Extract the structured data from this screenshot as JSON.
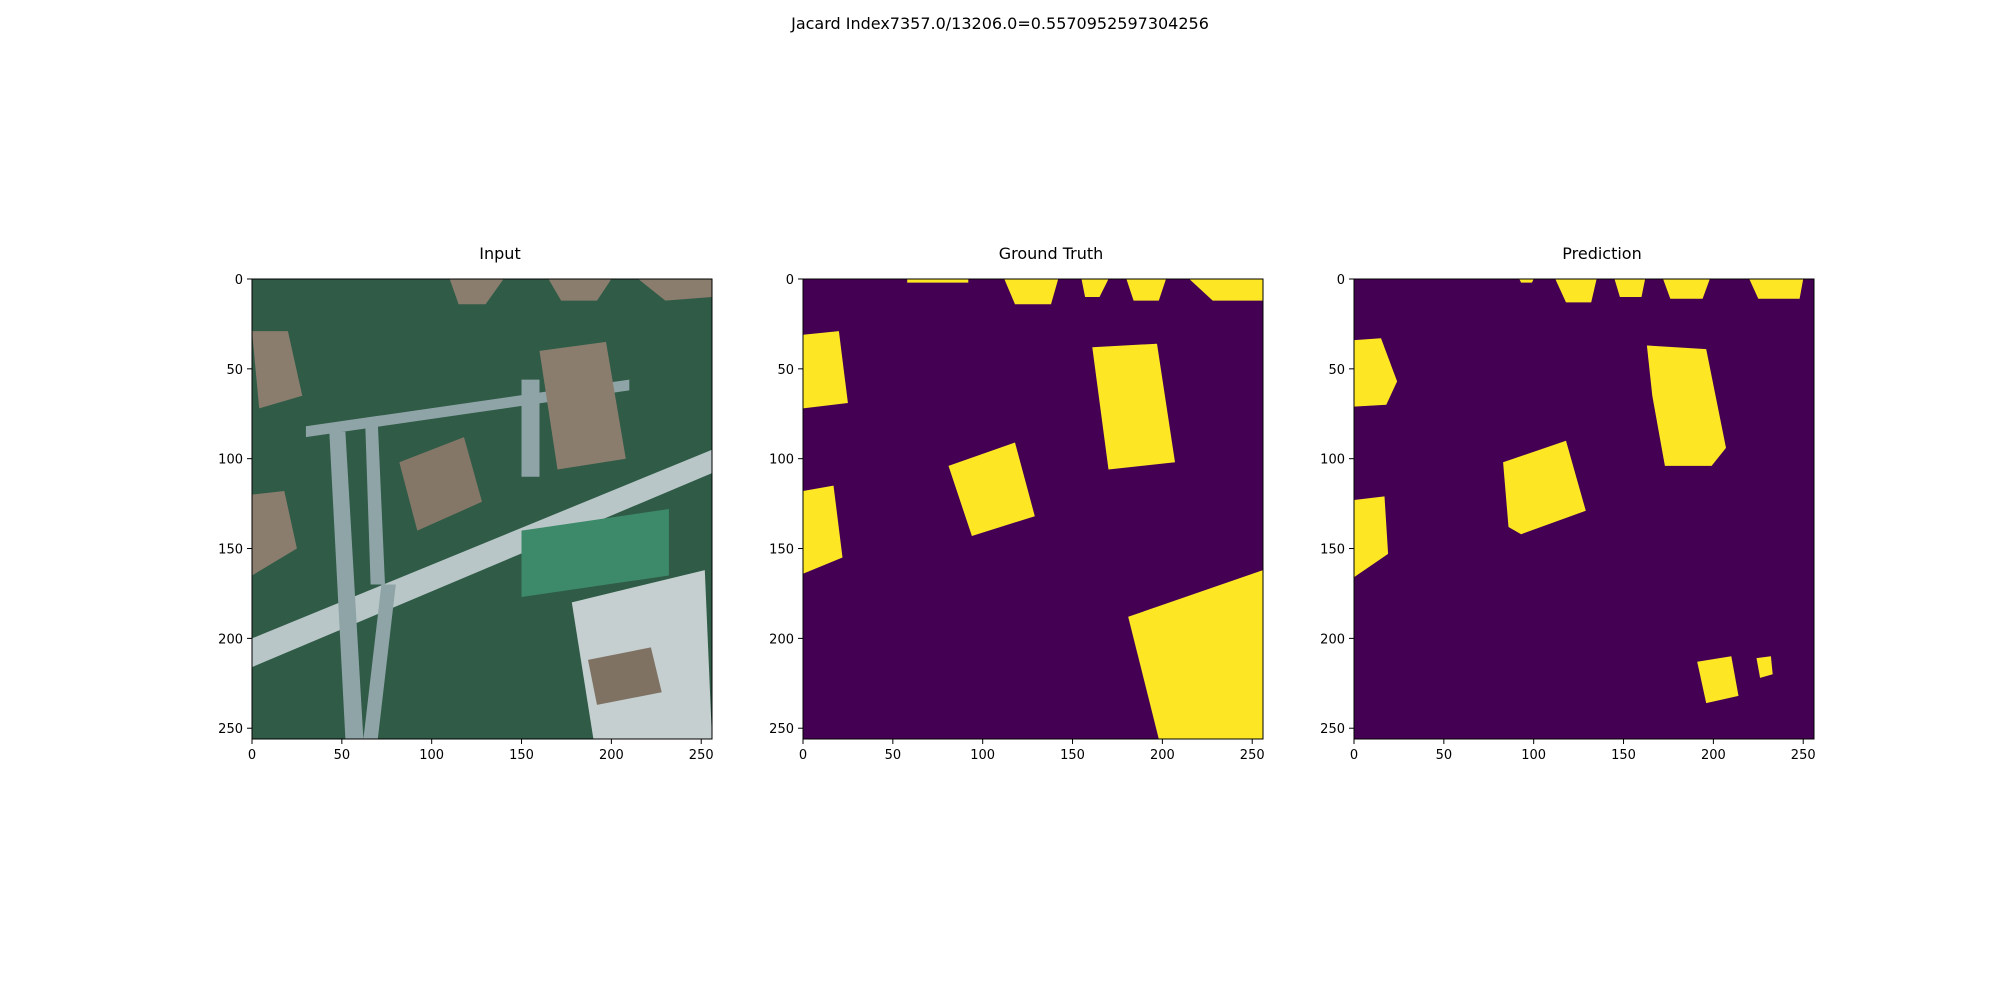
{
  "figure": {
    "suptitle": "Jacard Index7357.0/13206.0=0.5570952597304256"
  },
  "chart_data": [
    {
      "type": "heatmap",
      "title": "Input",
      "xlim": [
        0,
        256
      ],
      "ylim": [
        256,
        0
      ],
      "xticks": [
        0,
        50,
        100,
        150,
        200,
        250
      ],
      "yticks": [
        0,
        50,
        100,
        150,
        200,
        250
      ],
      "content": "aerial RGB image",
      "regions": [
        {
          "kind": "vegetation",
          "polygon": [
            [
              0,
              0
            ],
            [
              256,
              0
            ],
            [
              256,
              256
            ],
            [
              0,
              256
            ]
          ],
          "color": "#2f5b47"
        },
        {
          "kind": "road",
          "polygon": [
            [
              0,
              200
            ],
            [
              256,
              95
            ],
            [
              256,
              108
            ],
            [
              0,
              216
            ]
          ],
          "color": "#b9c6c7"
        },
        {
          "kind": "path",
          "polygon": [
            [
              43,
              85
            ],
            [
              52,
              85
            ],
            [
              62,
              256
            ],
            [
              52,
              256
            ]
          ],
          "color": "#8fa4a6"
        },
        {
          "kind": "path",
          "polygon": [
            [
              63,
              80
            ],
            [
              70,
              80
            ],
            [
              74,
              170
            ],
            [
              66,
              170
            ]
          ],
          "color": "#8fa4a6"
        },
        {
          "kind": "path",
          "polygon": [
            [
              72,
              170
            ],
            [
              80,
              170
            ],
            [
              70,
              256
            ],
            [
              62,
              256
            ]
          ],
          "color": "#8fa4a6"
        },
        {
          "kind": "path",
          "polygon": [
            [
              30,
              82
            ],
            [
              210,
              56
            ],
            [
              210,
              62
            ],
            [
              30,
              88
            ]
          ],
          "color": "#8fa4a6"
        },
        {
          "kind": "path",
          "polygon": [
            [
              150,
              56
            ],
            [
              160,
              56
            ],
            [
              160,
              110
            ],
            [
              150,
              110
            ]
          ],
          "color": "#8fa4a6"
        },
        {
          "kind": "lawn",
          "polygon": [
            [
              150,
              140
            ],
            [
              232,
              128
            ],
            [
              232,
              165
            ],
            [
              150,
              177
            ]
          ],
          "color": "#3d8a6a"
        },
        {
          "kind": "yard",
          "polygon": [
            [
              178,
              180
            ],
            [
              252,
              162
            ],
            [
              256,
              256
            ],
            [
              190,
              256
            ]
          ],
          "color": "#c5cfd0"
        },
        {
          "kind": "roof",
          "polygon": [
            [
              160,
              40
            ],
            [
              197,
              35
            ],
            [
              208,
              100
            ],
            [
              170,
              106
            ]
          ],
          "color": "#8a7d6e"
        },
        {
          "kind": "roof",
          "polygon": [
            [
              82,
              102
            ],
            [
              118,
              88
            ],
            [
              128,
              124
            ],
            [
              92,
              140
            ]
          ],
          "color": "#857767"
        },
        {
          "kind": "roof",
          "polygon": [
            [
              0,
              29
            ],
            [
              20,
              29
            ],
            [
              28,
              65
            ],
            [
              4,
              72
            ]
          ],
          "color": "#8a7d6e"
        },
        {
          "kind": "roof",
          "polygon": [
            [
              0,
              120
            ],
            [
              18,
              118
            ],
            [
              25,
              150
            ],
            [
              0,
              165
            ]
          ],
          "color": "#8a7d6e"
        },
        {
          "kind": "roof",
          "polygon": [
            [
              187,
              212
            ],
            [
              222,
              205
            ],
            [
              228,
              230
            ],
            [
              192,
              237
            ]
          ],
          "color": "#7f7263"
        },
        {
          "kind": "roof",
          "polygon": [
            [
              110,
              0
            ],
            [
              140,
              0
            ],
            [
              130,
              14
            ],
            [
              115,
              14
            ]
          ],
          "color": "#8a7d6e"
        },
        {
          "kind": "roof",
          "polygon": [
            [
              165,
              0
            ],
            [
              200,
              0
            ],
            [
              192,
              12
            ],
            [
              172,
              12
            ]
          ],
          "color": "#8a7d6e"
        },
        {
          "kind": "roof",
          "polygon": [
            [
              215,
              0
            ],
            [
              256,
              0
            ],
            [
              256,
              10
            ],
            [
              230,
              12
            ]
          ],
          "color": "#8a7d6e"
        }
      ]
    },
    {
      "type": "heatmap",
      "title": "Ground Truth",
      "xlim": [
        0,
        256
      ],
      "ylim": [
        256,
        0
      ],
      "xticks": [
        0,
        50,
        100,
        150,
        200,
        250
      ],
      "yticks": [
        0,
        50,
        100,
        150,
        200,
        250
      ],
      "background_value": 0,
      "foreground_value": 1,
      "colors": {
        "0": "#440154",
        "1": "#fde725"
      },
      "masks": [
        {
          "polygon": [
            [
              0,
              31
            ],
            [
              20,
              29
            ],
            [
              25,
              69
            ],
            [
              0,
              72
            ]
          ]
        },
        {
          "polygon": [
            [
              0,
              118
            ],
            [
              17,
              115
            ],
            [
              22,
              155
            ],
            [
              0,
              164
            ]
          ]
        },
        {
          "polygon": [
            [
              81,
              104
            ],
            [
              118,
              91
            ],
            [
              129,
              132
            ],
            [
              94,
              143
            ]
          ]
        },
        {
          "polygon": [
            [
              161,
              38
            ],
            [
              197,
              36
            ],
            [
              207,
              102
            ],
            [
              170,
              106
            ]
          ]
        },
        {
          "polygon": [
            [
              181,
              188
            ],
            [
              256,
              162
            ],
            [
              256,
              256
            ],
            [
              198,
              256
            ]
          ]
        },
        {
          "polygon": [
            [
              112,
              0
            ],
            [
              142,
              0
            ],
            [
              138,
              14
            ],
            [
              118,
              14
            ]
          ]
        },
        {
          "polygon": [
            [
              155,
              0
            ],
            [
              170,
              0
            ],
            [
              165,
              10
            ],
            [
              157,
              10
            ]
          ]
        },
        {
          "polygon": [
            [
              180,
              0
            ],
            [
              202,
              0
            ],
            [
              198,
              12
            ],
            [
              184,
              12
            ]
          ]
        },
        {
          "polygon": [
            [
              215,
              0
            ],
            [
              256,
              0
            ],
            [
              256,
              12
            ],
            [
              228,
              12
            ]
          ]
        },
        {
          "polygon": [
            [
              58,
              0
            ],
            [
              92,
              0
            ],
            [
              92,
              2
            ],
            [
              58,
              2
            ]
          ]
        }
      ]
    },
    {
      "type": "heatmap",
      "title": "Prediction",
      "xlim": [
        0,
        256
      ],
      "ylim": [
        256,
        0
      ],
      "xticks": [
        0,
        50,
        100,
        150,
        200,
        250
      ],
      "yticks": [
        0,
        50,
        100,
        150,
        200,
        250
      ],
      "background_value": 0,
      "foreground_value": 1,
      "colors": {
        "0": "#440154",
        "1": "#fde725"
      },
      "masks": [
        {
          "polygon": [
            [
              0,
              34
            ],
            [
              15,
              33
            ],
            [
              24,
              57
            ],
            [
              18,
              70
            ],
            [
              0,
              71
            ]
          ]
        },
        {
          "polygon": [
            [
              0,
              123
            ],
            [
              17,
              121
            ],
            [
              19,
              153
            ],
            [
              0,
              166
            ]
          ]
        },
        {
          "polygon": [
            [
              83,
              102
            ],
            [
              118,
              90
            ],
            [
              129,
              129
            ],
            [
              93,
              142
            ],
            [
              86,
              138
            ]
          ]
        },
        {
          "polygon": [
            [
              163,
              37
            ],
            [
              196,
              39
            ],
            [
              207,
              94
            ],
            [
              199,
              104
            ],
            [
              173,
              104
            ],
            [
              166,
              65
            ]
          ]
        },
        {
          "polygon": [
            [
              191,
              213
            ],
            [
              210,
              210
            ],
            [
              214,
              232
            ],
            [
              196,
              236
            ]
          ]
        },
        {
          "polygon": [
            [
              224,
              211
            ],
            [
              232,
              210
            ],
            [
              233,
              220
            ],
            [
              226,
              222
            ]
          ]
        },
        {
          "polygon": [
            [
              112,
              0
            ],
            [
              135,
              0
            ],
            [
              132,
              13
            ],
            [
              118,
              13
            ]
          ]
        },
        {
          "polygon": [
            [
              145,
              0
            ],
            [
              162,
              0
            ],
            [
              160,
              10
            ],
            [
              148,
              10
            ]
          ]
        },
        {
          "polygon": [
            [
              172,
              0
            ],
            [
              198,
              0
            ],
            [
              194,
              11
            ],
            [
              176,
              11
            ]
          ]
        },
        {
          "polygon": [
            [
              220,
              0
            ],
            [
              250,
              0
            ],
            [
              248,
              11
            ],
            [
              225,
              11
            ]
          ]
        },
        {
          "polygon": [
            [
              92,
              0
            ],
            [
              100,
              0
            ],
            [
              99,
              2
            ],
            [
              93,
              2
            ]
          ]
        }
      ]
    }
  ]
}
